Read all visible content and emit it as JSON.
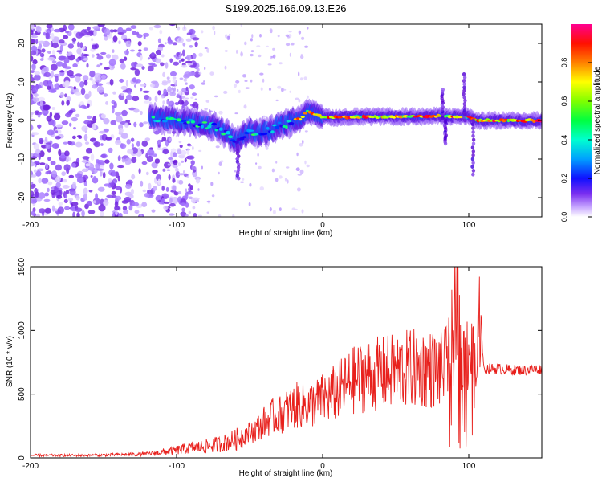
{
  "title": "S199.2025.166.09.13.E26",
  "chart_data": [
    {
      "type": "heatmap",
      "xlabel": "Height of straight line (km)",
      "ylabel": "Frequency (Hz)",
      "xlim": [
        -200,
        150
      ],
      "ylim": [
        -25,
        25
      ],
      "xticks": [
        -200,
        -100,
        0,
        100
      ],
      "yticks": [
        -20,
        -10,
        0,
        10,
        20
      ],
      "colorbar": {
        "label": "Normalized spectral amplitude",
        "range": [
          0,
          1
        ],
        "ticks": [
          0.0,
          0.2,
          0.4,
          0.6,
          0.8
        ],
        "tick_labels": [
          "0.0",
          "0.2",
          "0.4",
          "0.6",
          "0.8"
        ],
        "palette": [
          "#ffffff",
          "#a070ff",
          "#5a00d0",
          "#0000ff",
          "#00c8ff",
          "#00ff80",
          "#80ff00",
          "#ffff00",
          "#ff8000",
          "#ff0000",
          "#ff0080"
        ]
      },
      "ridge": [
        {
          "x": -115,
          "y": 0.5
        },
        {
          "x": -105,
          "y": 0.3
        },
        {
          "x": -95,
          "y": 0.0
        },
        {
          "x": -85,
          "y": -1.0
        },
        {
          "x": -75,
          "y": -1.5
        },
        {
          "x": -65,
          "y": -3.5
        },
        {
          "x": -60,
          "y": -5.5
        },
        {
          "x": -55,
          "y": -4.5
        },
        {
          "x": -50,
          "y": -2.5
        },
        {
          "x": -45,
          "y": -3.5
        },
        {
          "x": -40,
          "y": -3.0
        },
        {
          "x": -35,
          "y": -2.5
        },
        {
          "x": -30,
          "y": -1.0
        },
        {
          "x": -25,
          "y": -1.0
        },
        {
          "x": -20,
          "y": 0.0
        },
        {
          "x": -15,
          "y": 0.5
        },
        {
          "x": -10,
          "y": 2.5
        },
        {
          "x": -5,
          "y": 1.5
        },
        {
          "x": 0,
          "y": 1.0
        },
        {
          "x": 10,
          "y": 0.8
        },
        {
          "x": 20,
          "y": 1.0
        },
        {
          "x": 30,
          "y": 1.0
        },
        {
          "x": 40,
          "y": 1.0
        },
        {
          "x": 50,
          "y": 1.0
        },
        {
          "x": 60,
          "y": 1.0
        },
        {
          "x": 70,
          "y": 1.0
        },
        {
          "x": 80,
          "y": 1.2
        },
        {
          "x": 85,
          "y": 1.0
        },
        {
          "x": 90,
          "y": 1.0
        },
        {
          "x": 95,
          "y": 1.0
        },
        {
          "x": 100,
          "y": 1.0
        },
        {
          "x": 105,
          "y": 0.0
        },
        {
          "x": 110,
          "y": 0.0
        },
        {
          "x": 120,
          "y": 0.0
        },
        {
          "x": 130,
          "y": 0.0
        },
        {
          "x": 140,
          "y": 0.0
        },
        {
          "x": 150,
          "y": 0.0
        }
      ],
      "spikes": [
        {
          "x": -58,
          "y_from": -5,
          "y_to": -15
        },
        {
          "x": 82,
          "y_from": 0,
          "y_to": 8
        },
        {
          "x": 84,
          "y_from": 0,
          "y_to": -6
        },
        {
          "x": 97,
          "y_from": 0,
          "y_to": 12
        },
        {
          "x": 103,
          "y_from": 0,
          "y_to": -14
        }
      ]
    },
    {
      "type": "line",
      "xlabel": "Height of straight line (km)",
      "ylabel": "SNR (10 * v/v)",
      "xlim": [
        -200,
        150
      ],
      "ylim": [
        0,
        1500
      ],
      "xticks": [
        -200,
        -100,
        0,
        100
      ],
      "yticks": [
        0,
        500,
        1000,
        1500
      ],
      "series": [
        {
          "color": "#e8201c",
          "x": [
            -200,
            -180,
            -160,
            -140,
            -120,
            -100,
            -90,
            -80,
            -70,
            -60,
            -55,
            -50,
            -45,
            -40,
            -35,
            -30,
            -25,
            -20,
            -15,
            -10,
            -5,
            0,
            10,
            20,
            30,
            40,
            50,
            60,
            70,
            80,
            85,
            90,
            92,
            95,
            100,
            105,
            108,
            110,
            120,
            130,
            140,
            150
          ],
          "y": [
            20,
            20,
            20,
            25,
            30,
            60,
            80,
            90,
            110,
            140,
            170,
            200,
            230,
            280,
            320,
            330,
            370,
            400,
            420,
            410,
            430,
            460,
            520,
            600,
            650,
            660,
            680,
            700,
            700,
            690,
            720,
            1000,
            1500,
            700,
            900,
            600,
            1250,
            700,
            700,
            690,
            690,
            700
          ]
        }
      ]
    }
  ]
}
